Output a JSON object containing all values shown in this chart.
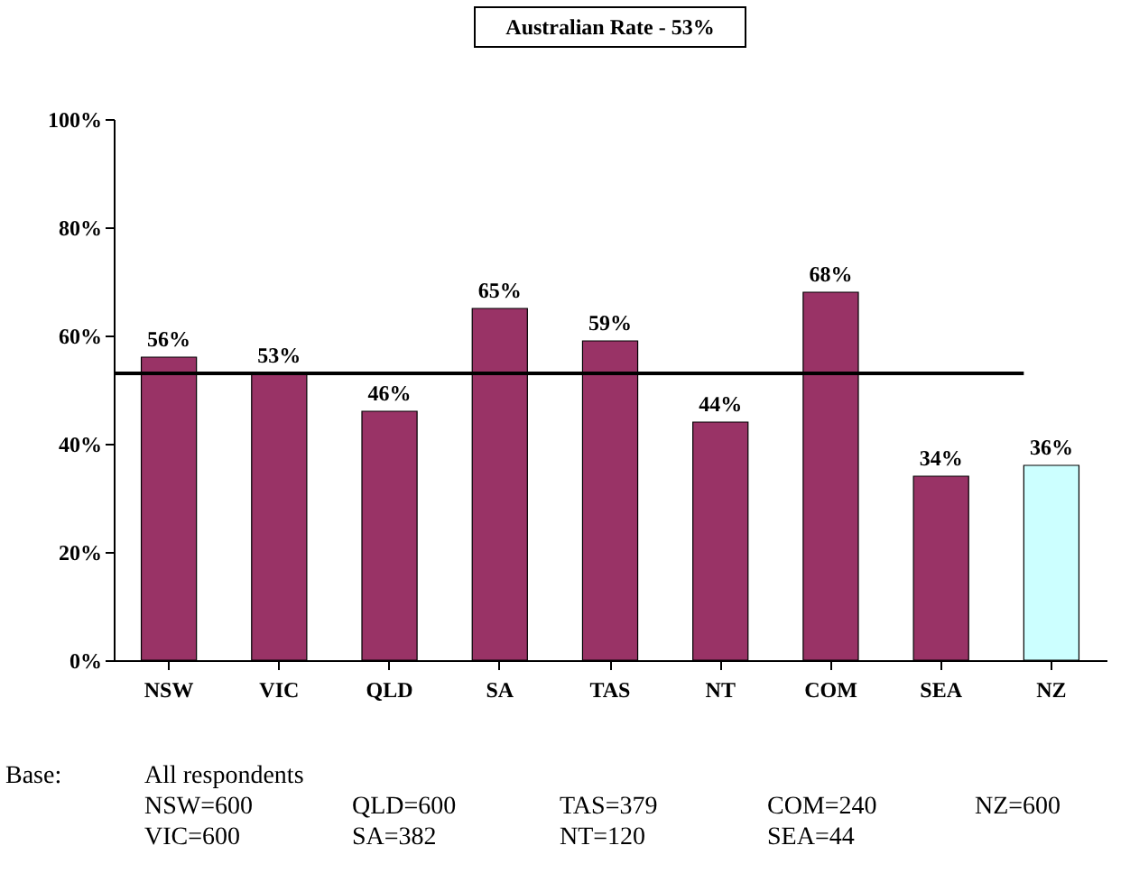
{
  "chart_data": {
    "type": "bar",
    "categories": [
      "NSW",
      "VIC",
      "QLD",
      "SA",
      "TAS",
      "NT",
      "COM",
      "SEA",
      "NZ"
    ],
    "values": [
      56,
      53,
      46,
      65,
      59,
      44,
      68,
      34,
      36
    ],
    "colors": [
      "#993366",
      "#993366",
      "#993366",
      "#993366",
      "#993366",
      "#993366",
      "#993366",
      "#993366",
      "#ccffff"
    ],
    "value_labels": [
      "56%",
      "53%",
      "46%",
      "65%",
      "59%",
      "44%",
      "68%",
      "34%",
      "36%"
    ],
    "ylim": [
      0,
      100
    ],
    "yticks": [
      {
        "value": 0,
        "label": "0%"
      },
      {
        "value": 20,
        "label": "20%"
      },
      {
        "value": 40,
        "label": "40%"
      },
      {
        "value": 60,
        "label": "60%"
      },
      {
        "value": 80,
        "label": "80%"
      },
      {
        "value": 100,
        "label": "100%"
      }
    ],
    "ref_lines": [
      {
        "axis": "y",
        "value": 53,
        "label": "Australian Rate - 53%",
        "color": "#000000"
      }
    ],
    "grid": false,
    "legend": false,
    "annotations": [
      "Base:",
      "All respondents",
      "NSW=600",
      "VIC=600",
      "QLD=600",
      "SA=382",
      "TAS=379",
      "NT=120",
      "COM=240",
      "SEA=44",
      "NZ=600"
    ]
  }
}
